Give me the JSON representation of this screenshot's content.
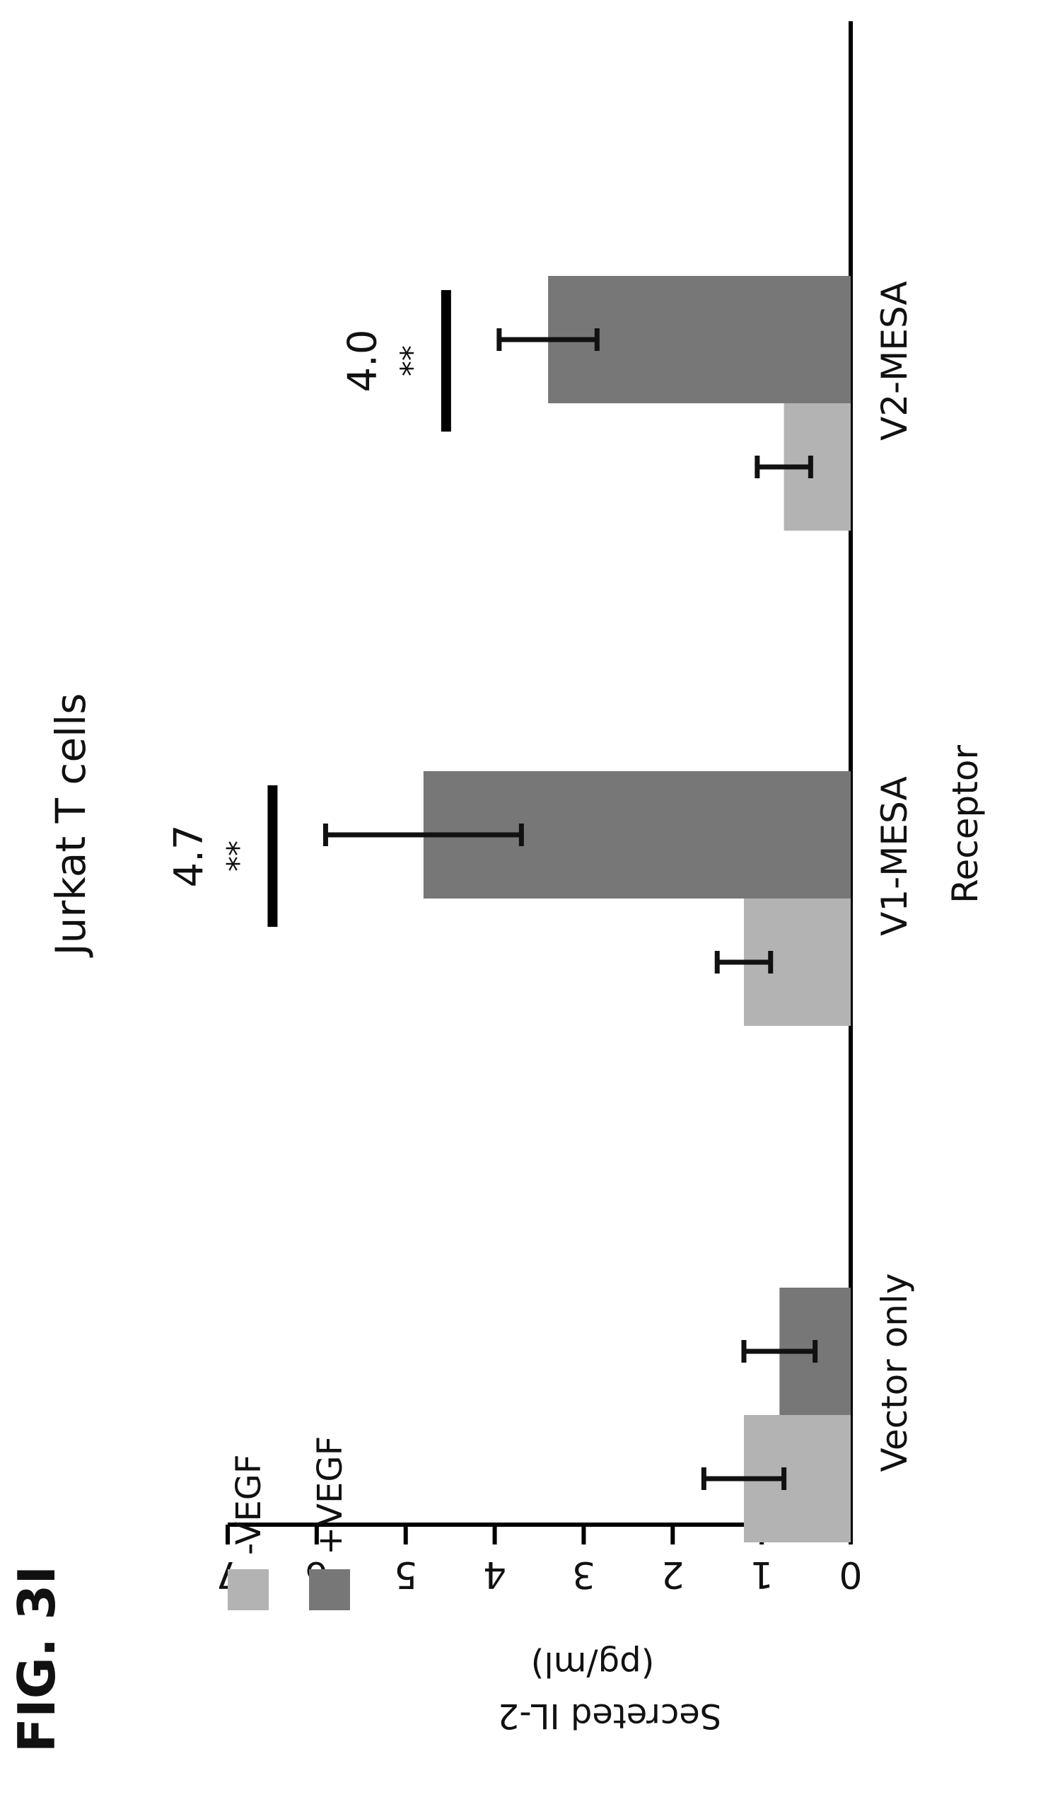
{
  "figure_label": "FIG. 3I",
  "chart_data": {
    "type": "bar",
    "title": "Jurkat T cells",
    "xlabel": "Receptor",
    "ylabel_line1": "Secreted IL-2",
    "ylabel_line2": "(pg/ml)",
    "ylim": [
      0,
      7
    ],
    "yticks": [
      "0",
      "1",
      "2",
      "3",
      "4",
      "5",
      "6",
      "7"
    ],
    "categories": [
      "Vector only",
      "V1-MESA",
      "V2-MESA"
    ],
    "series": [
      {
        "name": "-VEGF",
        "color": "#b3b3b3",
        "values": [
          1.2,
          1.2,
          0.75
        ],
        "errors": [
          0.45,
          0.3,
          0.3
        ]
      },
      {
        "name": "+VEGF",
        "color": "#777777",
        "values": [
          0.8,
          4.8,
          3.4
        ],
        "errors": [
          0.4,
          1.1,
          0.55
        ]
      }
    ],
    "annotations": [
      {
        "category": "V1-MESA",
        "fold_change": "4.7",
        "significance": "**"
      },
      {
        "category": "V2-MESA",
        "fold_change": "4.0",
        "significance": "**"
      }
    ],
    "legend_position": "top-left",
    "grid": false
  }
}
